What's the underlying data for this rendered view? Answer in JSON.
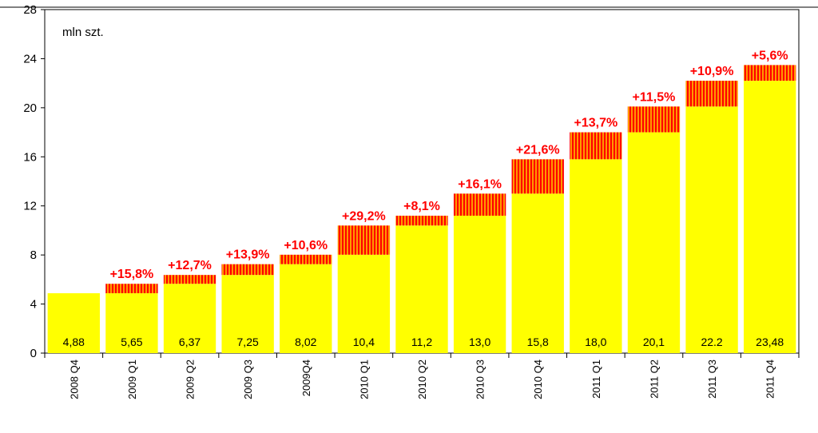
{
  "chart_data": {
    "type": "bar",
    "unit_label": "mln szt.",
    "categories": [
      "2008 Q4",
      "2009 Q1",
      "2009 Q2",
      "2009 Q3",
      "2009Q4",
      "2010 Q1",
      "2010 Q2",
      "2010 Q3",
      "2010 Q4",
      "2011 Q1",
      "2011 Q2",
      "2011 Q3",
      "2011 Q4"
    ],
    "values": [
      4.88,
      5.65,
      6.37,
      7.25,
      8.02,
      10.4,
      11.2,
      13.0,
      15.8,
      18.0,
      20.1,
      22.2,
      23.48
    ],
    "value_labels": [
      "4,88",
      "5,65",
      "6,37",
      "7,25",
      "8,02",
      "10,4",
      "11,2",
      "13,0",
      "15,8",
      "18,0",
      "20,1",
      "22.2",
      "23,48"
    ],
    "growth_labels": [
      "",
      "+15,8%",
      "+12,7%",
      "+13,9%",
      "+10,6%",
      "+29,2%",
      "+8,1%",
      "+16,1%",
      "+21,6%",
      "+13,7%",
      "+11,5%",
      "+10,9%",
      "+5,6%"
    ],
    "ylim": [
      0,
      28
    ],
    "yticks": [
      0,
      4,
      8,
      12,
      16,
      20,
      24,
      28
    ],
    "colors": {
      "bar": "#ffff00",
      "increment_stripe_a": "#ff9900",
      "increment_stripe_b": "#ff0000",
      "growth_text": "#ff0000",
      "plot_bg": "#ffffff",
      "axis": "#000000"
    }
  }
}
